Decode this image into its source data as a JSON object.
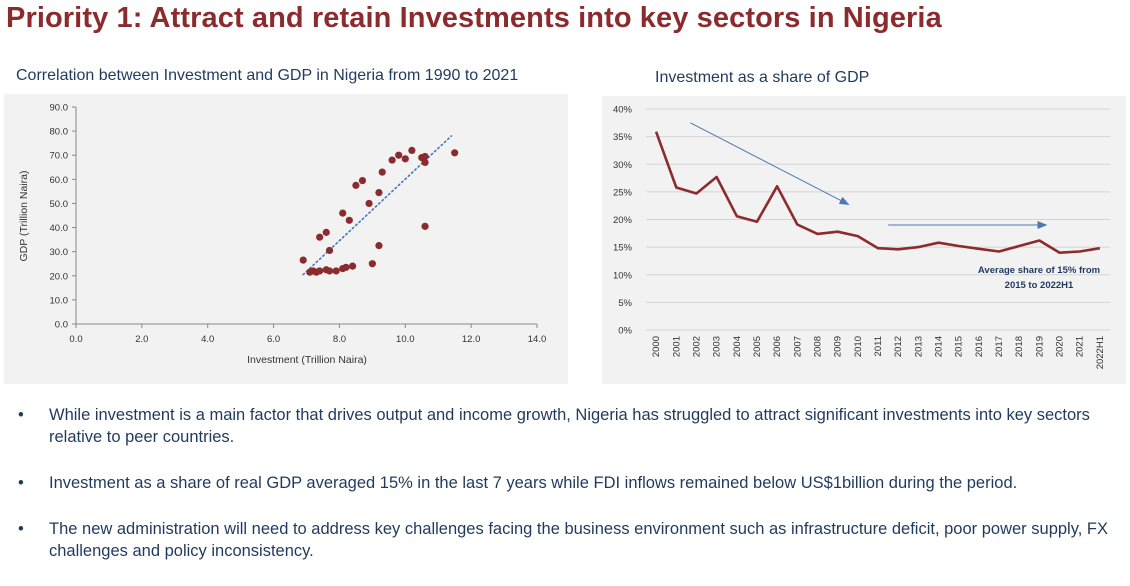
{
  "page_title": "Priority 1: Attract and retain Investments into key sectors in Nigeria",
  "colors": {
    "title": "#8b2b2e",
    "series": "#8b2b2e",
    "trend": "#4472c4",
    "arrow": "#4a7ab0",
    "text": "#1f3a5f"
  },
  "chart_data": [
    {
      "type": "scatter",
      "title": "Correlation between Investment and GDP in Nigeria from 1990 to 2021",
      "xlabel": "Investment (Trillion Naira)",
      "ylabel": "GDP (Trillion Naira)",
      "xlim": [
        0,
        14
      ],
      "ylim": [
        0,
        90
      ],
      "xticks": [
        "0.0",
        "2.0",
        "4.0",
        "6.0",
        "8.0",
        "10.0",
        "12.0",
        "14.0"
      ],
      "yticks": [
        "0.0",
        "10.0",
        "20.0",
        "30.0",
        "40.0",
        "50.0",
        "60.0",
        "70.0",
        "80.0",
        "90.0"
      ],
      "trendline": {
        "style": "dotted",
        "from": [
          6.9,
          20.5
        ],
        "to": [
          11.4,
          78
        ]
      },
      "points": [
        [
          6.9,
          26.5
        ],
        [
          7.1,
          21.5
        ],
        [
          7.2,
          22
        ],
        [
          7.3,
          21.5
        ],
        [
          7.4,
          22
        ],
        [
          7.4,
          36
        ],
        [
          7.6,
          38
        ],
        [
          7.6,
          22.5
        ],
        [
          7.7,
          30.5
        ],
        [
          7.7,
          22
        ],
        [
          7.9,
          22
        ],
        [
          8.1,
          23
        ],
        [
          8.1,
          46
        ],
        [
          8.2,
          23.5
        ],
        [
          8.3,
          43
        ],
        [
          8.4,
          24
        ],
        [
          8.5,
          57.5
        ],
        [
          8.7,
          59.5
        ],
        [
          8.9,
          50
        ],
        [
          9.0,
          25
        ],
        [
          9.2,
          32.5
        ],
        [
          9.2,
          54.5
        ],
        [
          9.3,
          63
        ],
        [
          9.6,
          68
        ],
        [
          9.8,
          70
        ],
        [
          10.0,
          68.5
        ],
        [
          10.2,
          72
        ],
        [
          10.5,
          69
        ],
        [
          10.6,
          69.5
        ],
        [
          10.6,
          67
        ],
        [
          10.6,
          40.5
        ],
        [
          11.5,
          71
        ]
      ]
    },
    {
      "type": "line",
      "title": "Investment as a share of GDP",
      "ylim": [
        0,
        40
      ],
      "yticks": [
        "0%",
        "5%",
        "10%",
        "15%",
        "20%",
        "25%",
        "30%",
        "35%",
        "40%"
      ],
      "categories": [
        "2000",
        "2001",
        "2002",
        "2003",
        "2004",
        "2005",
        "2006",
        "2007",
        "2008",
        "2009",
        "2010",
        "2011",
        "2012",
        "2013",
        "2014",
        "2015",
        "2016",
        "2017",
        "2018",
        "2019",
        "2020",
        "2021",
        "2022H1"
      ],
      "series": [
        {
          "name": "Investment share of GDP",
          "values": [
            35.9,
            25.8,
            24.7,
            27.7,
            20.6,
            19.6,
            26.0,
            19.1,
            17.4,
            17.8,
            17.0,
            14.8,
            14.6,
            15.0,
            15.8,
            15.2,
            14.7,
            14.2,
            15.2,
            16.2,
            14.0,
            14.2,
            14.8
          ]
        }
      ],
      "annotation": {
        "line1": "Average share of 15% from",
        "line2": "2015 to 2022H1"
      },
      "arrows": [
        {
          "from": [
            1.7,
            37.5
          ],
          "to": [
            9.5,
            22.8
          ]
        },
        {
          "from": [
            11.5,
            19.0
          ],
          "to": [
            19.3,
            19.0
          ]
        }
      ]
    }
  ],
  "bullets": [
    {
      "symbol": "•",
      "text": "While investment is a main factor that drives output and income growth, Nigeria has struggled to attract significant investments into key sectors relative to peer countries."
    },
    {
      "symbol": "•",
      "text": "Investment as a share of real GDP averaged 15% in the last 7 years while FDI inflows remained below US$1billion during the period."
    },
    {
      "symbol": "•",
      "text": "The new administration will need to address key challenges facing the business environment such as infrastructure deficit, poor power supply, FX challenges and policy inconsistency."
    }
  ]
}
